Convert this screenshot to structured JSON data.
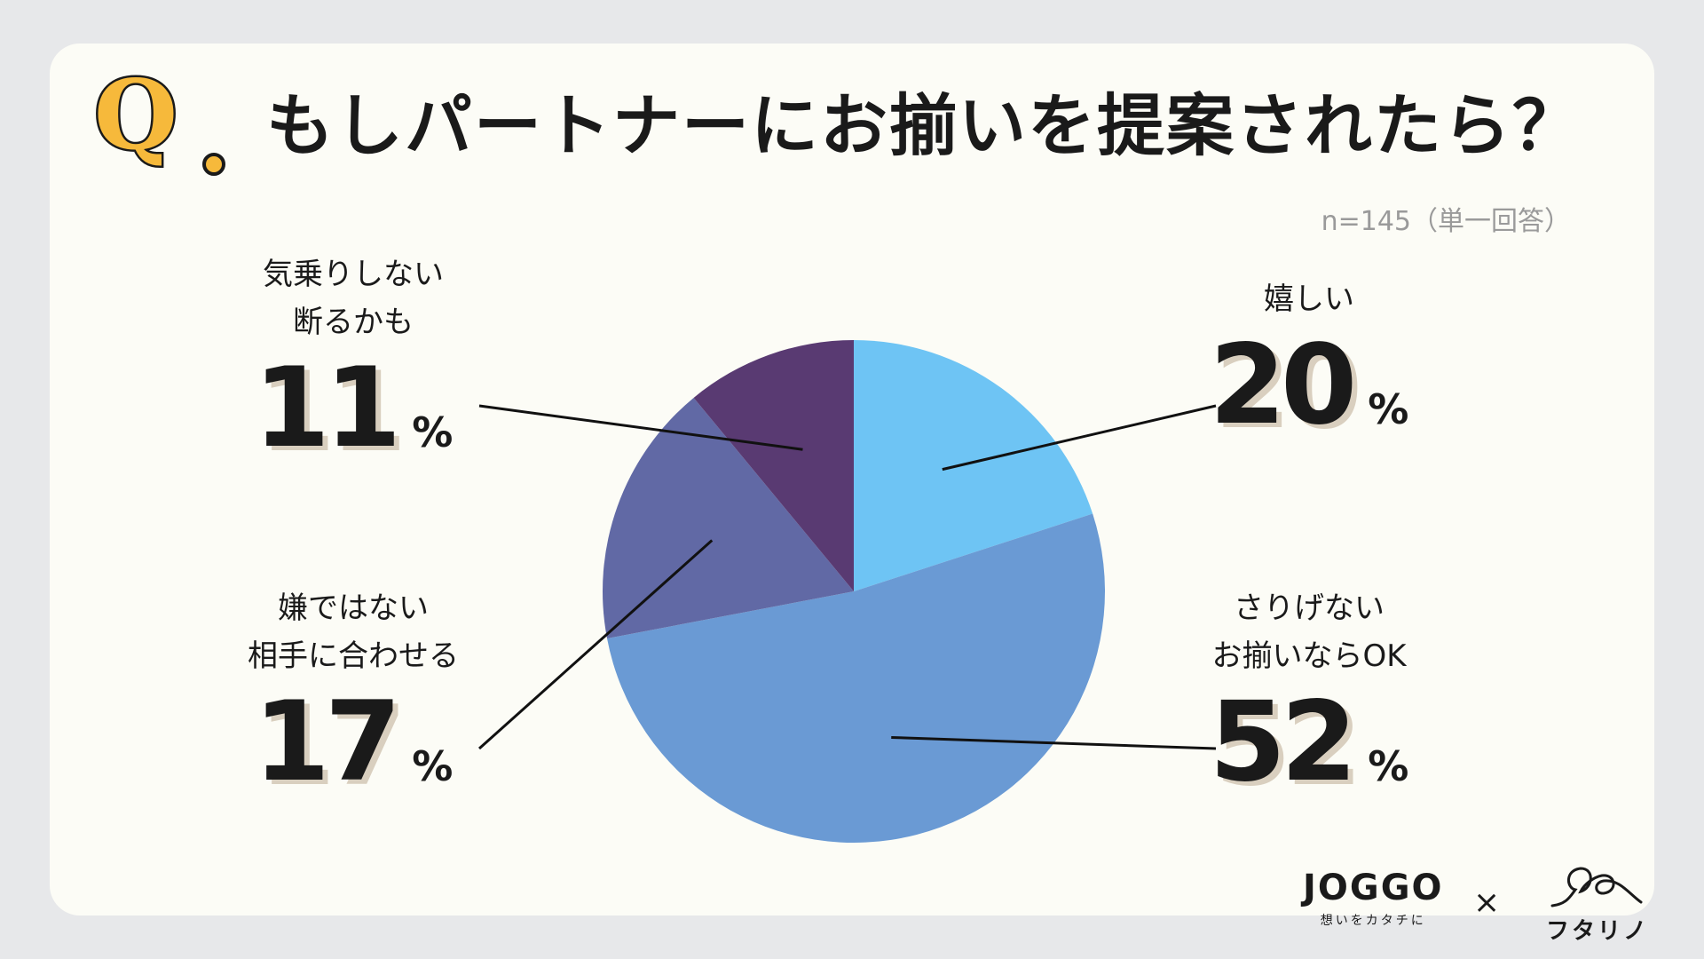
{
  "question": {
    "marker": "Q",
    "title": "もしパートナーにお揃いを提案されたら？"
  },
  "sample_note": "n=145（単一回答）",
  "chart_data": {
    "type": "pie",
    "start_angle_deg": 0,
    "direction": "clockwise",
    "slices": [
      {
        "label": "嬉しい",
        "value": 20,
        "color": "#6ec4f4"
      },
      {
        "label": "さりげない\nお揃いならOK",
        "value": 52,
        "color": "#6a9ad4"
      },
      {
        "label": "嫌ではない\n相手に合わせる",
        "value": 17,
        "color": "#6169a5"
      },
      {
        "label": "気乗りしない\n断るかも",
        "value": 11,
        "color": "#593a72"
      }
    ],
    "percent_sign": "%"
  },
  "footer": {
    "joggo_brand": "JOGGO",
    "joggo_tagline": "想いをカタチに",
    "separator": "×",
    "futarino_brand": "フタリノ"
  }
}
